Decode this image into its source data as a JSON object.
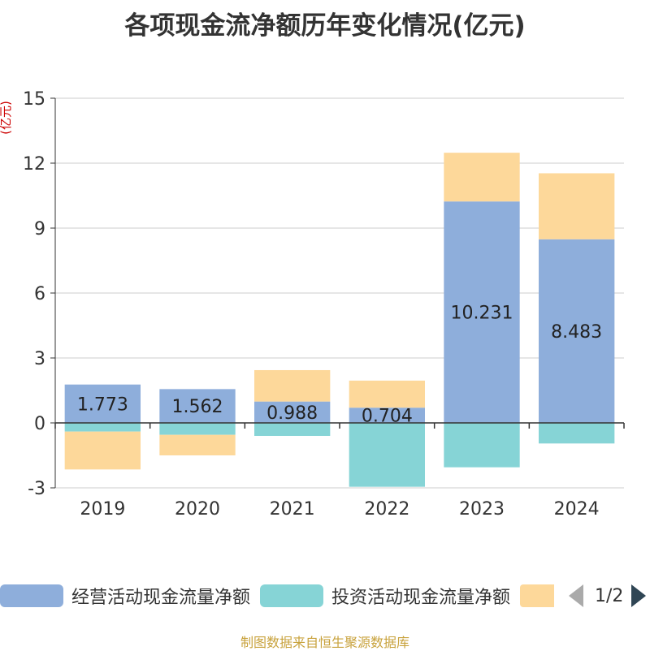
{
  "chart_data": {
    "type": "bar",
    "stacked": true,
    "title": "各项现金流净额历年变化情况(亿元)",
    "ylabel": "(亿元)",
    "xlabel": "",
    "categories": [
      "2019",
      "2020",
      "2021",
      "2022",
      "2023",
      "2024"
    ],
    "ylim": [
      -3,
      15
    ],
    "yticks": [
      -3,
      0,
      3,
      6,
      9,
      12,
      15
    ],
    "grid": true,
    "legend_position": "bottom",
    "series": [
      {
        "name": "经营活动现金流量净额",
        "color": "#8eaedb",
        "values": [
          1.773,
          1.562,
          0.988,
          0.704,
          10.231,
          8.483
        ],
        "show_labels": true
      },
      {
        "name": "投资活动现金流量净额",
        "color": "#86d4d6",
        "values": [
          -0.4,
          -0.55,
          -0.6,
          -2.95,
          -2.05,
          -0.95
        ],
        "show_labels": false
      },
      {
        "name": "",
        "color": "#fdd89a",
        "values": [
          -1.75,
          -0.95,
          1.45,
          1.25,
          2.25,
          3.05
        ],
        "show_labels": false
      }
    ]
  },
  "legend": {
    "items": [
      "经营活动现金流量净额",
      "投资活动现金流量净额",
      ""
    ],
    "page_text": "1/2"
  },
  "footer": {
    "source": "制图数据来自恒生聚源数据库"
  }
}
